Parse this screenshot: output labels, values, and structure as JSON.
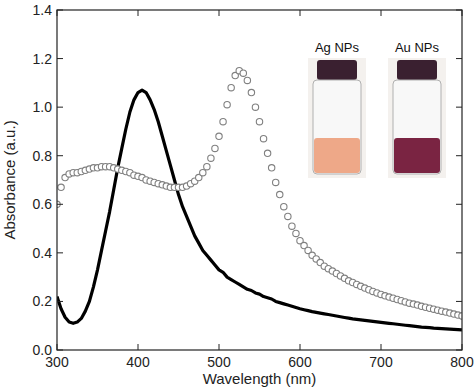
{
  "chart_data": {
    "type": "line",
    "x_label": "Wavelength (nm)",
    "y_label": "Absorbance (a.u.)",
    "xlim": [
      300,
      800
    ],
    "ylim": [
      0,
      1.4
    ],
    "xticks": [
      300,
      400,
      500,
      600,
      700,
      800
    ],
    "yticks": [
      {
        "value": 0,
        "label": "0.0"
      },
      0.2,
      0.4,
      0.6,
      0.8,
      {
        "value": 1,
        "label": "1.0"
      },
      1.2,
      1.4
    ],
    "grid": false,
    "x": [
      300,
      305,
      310,
      315,
      320,
      325,
      330,
      335,
      340,
      345,
      350,
      355,
      360,
      365,
      370,
      375,
      380,
      385,
      390,
      395,
      400,
      405,
      410,
      415,
      420,
      425,
      430,
      435,
      440,
      445,
      450,
      455,
      460,
      465,
      470,
      475,
      480,
      485,
      490,
      495,
      500,
      505,
      510,
      515,
      520,
      525,
      530,
      535,
      540,
      545,
      550,
      555,
      560,
      565,
      570,
      575,
      580,
      585,
      590,
      595,
      600,
      605,
      610,
      615,
      620,
      625,
      630,
      635,
      640,
      645,
      650,
      655,
      660,
      665,
      670,
      675,
      680,
      685,
      690,
      695,
      700,
      705,
      710,
      715,
      720,
      725,
      730,
      735,
      740,
      745,
      750,
      755,
      760,
      765,
      770,
      775,
      780,
      785,
      790,
      795,
      800
    ],
    "series": [
      {
        "name": "Ag NPs",
        "color": "#000000",
        "line_style": "solid",
        "values": [
          0.22,
          0.17,
          0.135,
          0.115,
          0.11,
          0.115,
          0.13,
          0.16,
          0.2,
          0.26,
          0.33,
          0.41,
          0.49,
          0.57,
          0.66,
          0.75,
          0.83,
          0.91,
          0.98,
          1.03,
          1.06,
          1.07,
          1.06,
          1.03,
          0.99,
          0.94,
          0.88,
          0.82,
          0.76,
          0.7,
          0.64,
          0.59,
          0.55,
          0.51,
          0.47,
          0.44,
          0.41,
          0.39,
          0.37,
          0.35,
          0.33,
          0.32,
          0.3,
          0.29,
          0.28,
          0.27,
          0.26,
          0.25,
          0.245,
          0.235,
          0.23,
          0.22,
          0.215,
          0.21,
          0.2,
          0.195,
          0.19,
          0.185,
          0.18,
          0.175,
          0.17,
          0.166,
          0.162,
          0.158,
          0.155,
          0.152,
          0.149,
          0.146,
          0.143,
          0.14,
          0.137,
          0.134,
          0.131,
          0.128,
          0.126,
          0.124,
          0.122,
          0.12,
          0.118,
          0.116,
          0.114,
          0.112,
          0.11,
          0.108,
          0.106,
          0.104,
          0.102,
          0.1,
          0.098,
          0.096,
          0.094,
          0.093,
          0.092,
          0.09,
          0.089,
          0.088,
          0.087,
          0.086,
          0.085,
          0.084,
          0.083
        ]
      },
      {
        "name": "Au NPs",
        "color": "#808080",
        "marker": "circle",
        "line_style": "none",
        "values": [
          0.6,
          0.67,
          0.71,
          0.725,
          0.73,
          0.73,
          0.735,
          0.74,
          0.745,
          0.75,
          0.75,
          0.755,
          0.755,
          0.755,
          0.75,
          0.745,
          0.74,
          0.735,
          0.73,
          0.72,
          0.715,
          0.71,
          0.7,
          0.695,
          0.69,
          0.685,
          0.68,
          0.675,
          0.67,
          0.67,
          0.67,
          0.67,
          0.675,
          0.685,
          0.695,
          0.71,
          0.73,
          0.755,
          0.79,
          0.83,
          0.88,
          0.94,
          1.01,
          1.08,
          1.13,
          1.15,
          1.14,
          1.11,
          1.06,
          1.0,
          0.94,
          0.87,
          0.81,
          0.75,
          0.69,
          0.64,
          0.59,
          0.55,
          0.51,
          0.48,
          0.45,
          0.43,
          0.41,
          0.39,
          0.375,
          0.36,
          0.345,
          0.335,
          0.325,
          0.315,
          0.305,
          0.295,
          0.285,
          0.278,
          0.27,
          0.262,
          0.255,
          0.248,
          0.241,
          0.235,
          0.229,
          0.223,
          0.218,
          0.213,
          0.208,
          0.203,
          0.198,
          0.193,
          0.189,
          0.185,
          0.18,
          0.176,
          0.172,
          0.168,
          0.164,
          0.16,
          0.156,
          0.152,
          0.148,
          0.144,
          0.14
        ]
      }
    ]
  }
}
